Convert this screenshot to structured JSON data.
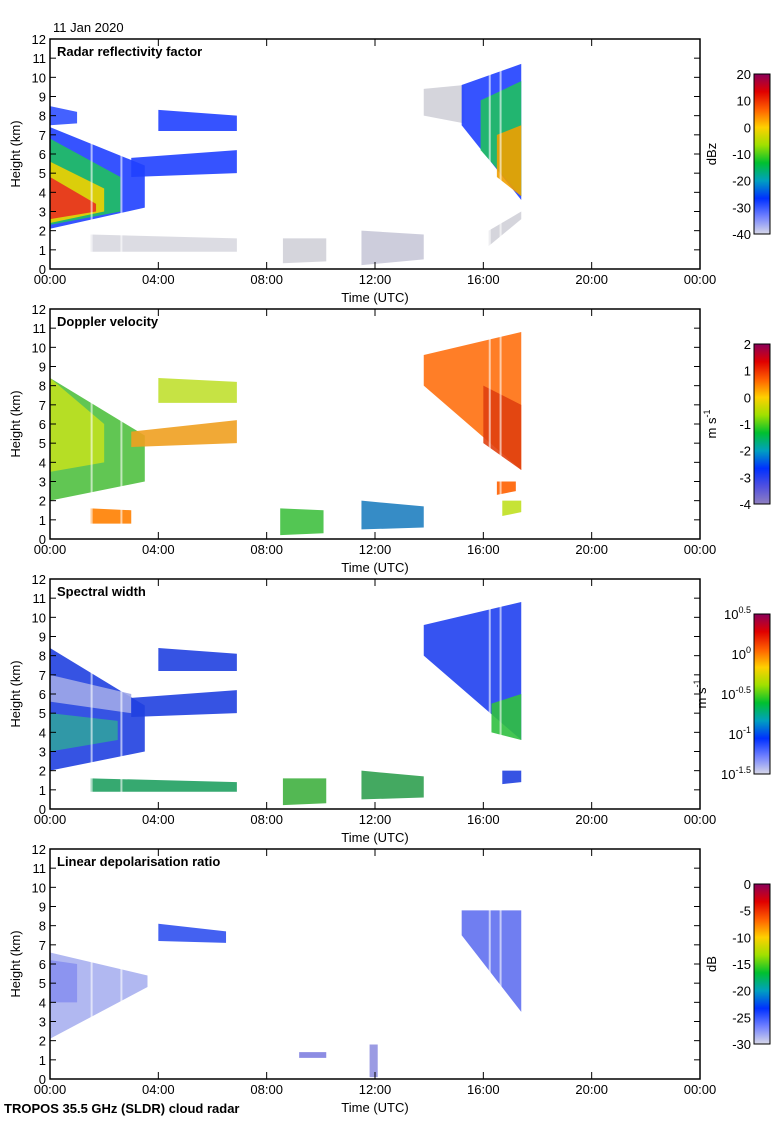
{
  "date": "11 Jan 2020",
  "footer": "TROPOS 35.5 GHz (SLDR) cloud radar",
  "chart_data": [
    {
      "type": "heatmap",
      "title": "Radar reflectivity factor",
      "xlabel": "Time (UTC)",
      "ylabel": "Height (km)",
      "xlim": [
        0,
        24
      ],
      "ylim": [
        0,
        12
      ],
      "xticks": [
        "00:00",
        "04:00",
        "08:00",
        "12:00",
        "16:00",
        "20:00",
        "00:00"
      ],
      "yticks": [
        "0",
        "1",
        "2",
        "3",
        "4",
        "5",
        "6",
        "7",
        "8",
        "9",
        "10",
        "11",
        "12"
      ],
      "colorbar": {
        "unit": "dBz",
        "unit_sup": "",
        "range": [
          -40,
          20
        ],
        "ticks": [
          {
            "b": "20",
            "e": ""
          },
          {
            "b": "10",
            "e": ""
          },
          {
            "b": "0",
            "e": ""
          },
          {
            "b": "-10",
            "e": ""
          },
          {
            "b": "-20",
            "e": ""
          },
          {
            "b": "-30",
            "e": ""
          },
          {
            "b": "-40",
            "e": ""
          }
        ],
        "colors": [
          "#8b005a",
          "#e00000",
          "#ff6000",
          "#ffd000",
          "#a0e000",
          "#00c030",
          "#00a0c0",
          "#0030ff",
          "#7080ff",
          "#d8d8e8"
        ]
      },
      "echoes": [
        {
          "t": [
            0,
            3.5
          ],
          "bottom": [
            2.1,
            3.2
          ],
          "top": [
            7.4,
            5.4
          ],
          "color": "#2040ff"
        },
        {
          "t": [
            0,
            2.6
          ],
          "bottom": [
            2.3,
            3.0
          ],
          "top": [
            6.8,
            4.8
          ],
          "color": "#20c060"
        },
        {
          "t": [
            0,
            2.0
          ],
          "bottom": [
            2.4,
            3.0
          ],
          "top": [
            5.6,
            4.2
          ],
          "color": "#f0d000"
        },
        {
          "t": [
            0,
            1.7
          ],
          "bottom": [
            2.6,
            3.0
          ],
          "top": [
            4.8,
            3.4
          ],
          "color": "#e83020"
        },
        {
          "t": [
            0,
            1.0
          ],
          "bottom": [
            7.5,
            7.6
          ],
          "top": [
            8.5,
            8.2
          ],
          "color": "#3050ff"
        },
        {
          "t": [
            4.0,
            6.9
          ],
          "bottom": [
            7.2,
            7.2
          ],
          "top": [
            8.3,
            8.0
          ],
          "color": "#2040ff"
        },
        {
          "t": [
            3.0,
            6.9
          ],
          "bottom": [
            4.8,
            5.0
          ],
          "top": [
            5.8,
            6.2
          ],
          "color": "#2040ff"
        },
        {
          "t": [
            13.8,
            15.3
          ],
          "bottom": [
            8.0,
            7.6
          ],
          "top": [
            9.4,
            9.6
          ],
          "color": "#d0d0d8"
        },
        {
          "t": [
            15.2,
            17.4
          ],
          "bottom": [
            7.5,
            3.6
          ],
          "top": [
            9.6,
            10.7
          ],
          "color": "#2040ff"
        },
        {
          "t": [
            15.9,
            17.4
          ],
          "bottom": [
            6.2,
            3.8
          ],
          "top": [
            8.8,
            9.8
          ],
          "color": "#20c060"
        },
        {
          "t": [
            16.5,
            17.4
          ],
          "bottom": [
            4.8,
            3.8
          ],
          "top": [
            7.0,
            7.5
          ],
          "color": "#f0a000"
        },
        {
          "t": [
            1.5,
            6.9
          ],
          "bottom": [
            0.9,
            0.9
          ],
          "top": [
            1.8,
            1.6
          ],
          "color": "#d8d8e0"
        },
        {
          "t": [
            8.6,
            10.2
          ],
          "bottom": [
            0.3,
            0.4
          ],
          "top": [
            1.6,
            1.6
          ],
          "color": "#d0d0d8"
        },
        {
          "t": [
            11.5,
            13.8
          ],
          "bottom": [
            0.2,
            0.5
          ],
          "top": [
            2.0,
            1.8
          ],
          "color": "#c8c8d8"
        },
        {
          "t": [
            16.2,
            17.4
          ],
          "bottom": [
            1.2,
            2.6
          ],
          "top": [
            2.0,
            3.0
          ],
          "color": "#d0d0d8"
        }
      ]
    },
    {
      "type": "heatmap",
      "title": "Doppler velocity",
      "xlabel": "Time (UTC)",
      "ylabel": "Height (km)",
      "xlim": [
        0,
        24
      ],
      "ylim": [
        0,
        12
      ],
      "xticks": [
        "00:00",
        "04:00",
        "08:00",
        "12:00",
        "16:00",
        "20:00",
        "00:00"
      ],
      "yticks": [
        "0",
        "1",
        "2",
        "3",
        "4",
        "5",
        "6",
        "7",
        "8",
        "9",
        "10",
        "11",
        "12"
      ],
      "colorbar": {
        "unit": "m s",
        "unit_sup": "-1",
        "range": [
          -4,
          2
        ],
        "ticks": [
          {
            "b": "2",
            "e": ""
          },
          {
            "b": "1",
            "e": ""
          },
          {
            "b": "0",
            "e": ""
          },
          {
            "b": "-1",
            "e": ""
          },
          {
            "b": "-2",
            "e": ""
          },
          {
            "b": "-3",
            "e": ""
          },
          {
            "b": "-4",
            "e": ""
          }
        ],
        "colors": [
          "#8b005a",
          "#e00000",
          "#ff6000",
          "#ffd000",
          "#a0e000",
          "#00c030",
          "#00a0c0",
          "#0030ff",
          "#5050e0",
          "#9080c0"
        ]
      },
      "echoes": [
        {
          "t": [
            0,
            3.5
          ],
          "bottom": [
            2.0,
            3.0
          ],
          "top": [
            8.4,
            5.4
          ],
          "color": "#50c040"
        },
        {
          "t": [
            0,
            2.0
          ],
          "bottom": [
            3.5,
            4.0
          ],
          "top": [
            8.4,
            6.0
          ],
          "color": "#c0e020"
        },
        {
          "t": [
            4.0,
            6.9
          ],
          "bottom": [
            7.1,
            7.1
          ],
          "top": [
            8.4,
            8.2
          ],
          "color": "#c0e030"
        },
        {
          "t": [
            3.0,
            6.9
          ],
          "bottom": [
            4.8,
            5.0
          ],
          "top": [
            5.6,
            6.2
          ],
          "color": "#f0a020"
        },
        {
          "t": [
            13.8,
            17.4
          ],
          "bottom": [
            8.0,
            3.6
          ],
          "top": [
            9.6,
            10.8
          ],
          "color": "#ff7010"
        },
        {
          "t": [
            16.0,
            17.4
          ],
          "bottom": [
            5.0,
            3.6
          ],
          "top": [
            8.0,
            7.0
          ],
          "color": "#e04010"
        },
        {
          "t": [
            1.5,
            3.0
          ],
          "bottom": [
            0.8,
            0.8
          ],
          "top": [
            1.6,
            1.5
          ],
          "color": "#ff8000"
        },
        {
          "t": [
            8.5,
            10.1
          ],
          "bottom": [
            0.2,
            0.3
          ],
          "top": [
            1.6,
            1.5
          ],
          "color": "#40c040"
        },
        {
          "t": [
            11.5,
            13.8
          ],
          "bottom": [
            0.5,
            0.6
          ],
          "top": [
            2.0,
            1.7
          ],
          "color": "#2080c0"
        },
        {
          "t": [
            16.7,
            17.4
          ],
          "bottom": [
            1.2,
            1.4
          ],
          "top": [
            2.0,
            2.0
          ],
          "color": "#c0e020"
        },
        {
          "t": [
            16.5,
            17.2
          ],
          "bottom": [
            2.3,
            2.5
          ],
          "top": [
            3.0,
            3.0
          ],
          "color": "#ff6000"
        }
      ]
    },
    {
      "type": "heatmap",
      "title": "Spectral width",
      "xlabel": "Time (UTC)",
      "ylabel": "Height (km)",
      "xlim": [
        0,
        24
      ],
      "ylim": [
        0,
        12
      ],
      "xticks": [
        "00:00",
        "04:00",
        "08:00",
        "12:00",
        "16:00",
        "20:00",
        "00:00"
      ],
      "yticks": [
        "0",
        "1",
        "2",
        "3",
        "4",
        "5",
        "6",
        "7",
        "8",
        "9",
        "10",
        "11",
        "12"
      ],
      "colorbar": {
        "unit": "m s",
        "unit_sup": "-1",
        "range": [
          -1.5,
          0.5
        ],
        "ticks": [
          {
            "b": "10",
            "e": "0.5"
          },
          {
            "b": "10",
            "e": "0"
          },
          {
            "b": "10",
            "e": "-0.5"
          },
          {
            "b": "10",
            "e": "-1"
          },
          {
            "b": "10",
            "e": "-1.5"
          }
        ],
        "colors": [
          "#8b005a",
          "#e00000",
          "#ff6000",
          "#ffd000",
          "#a0e000",
          "#00c030",
          "#00a0c0",
          "#0030ff",
          "#7080ff",
          "#d8d8e8"
        ]
      },
      "echoes": [
        {
          "t": [
            0,
            3.5
          ],
          "bottom": [
            2.0,
            3.0
          ],
          "top": [
            8.4,
            5.4
          ],
          "color": "#2040e0"
        },
        {
          "t": [
            0,
            2.5
          ],
          "bottom": [
            3.0,
            3.6
          ],
          "top": [
            5.0,
            4.6
          ],
          "color": "#30a0a0"
        },
        {
          "t": [
            0,
            3.0
          ],
          "bottom": [
            5.6,
            5.0
          ],
          "top": [
            7.0,
            6.0
          ],
          "color": "#a0a8e8"
        },
        {
          "t": [
            4.0,
            6.9
          ],
          "bottom": [
            7.2,
            7.2
          ],
          "top": [
            8.4,
            8.1
          ],
          "color": "#2040e0"
        },
        {
          "t": [
            3.0,
            6.9
          ],
          "bottom": [
            4.8,
            5.0
          ],
          "top": [
            5.8,
            6.2
          ],
          "color": "#2040e0"
        },
        {
          "t": [
            13.8,
            17.4
          ],
          "bottom": [
            8.0,
            3.6
          ],
          "top": [
            9.6,
            10.8
          ],
          "color": "#2040f0"
        },
        {
          "t": [
            16.3,
            17.4
          ],
          "bottom": [
            4.0,
            3.6
          ],
          "top": [
            5.5,
            6.0
          ],
          "color": "#30c040"
        },
        {
          "t": [
            1.5,
            6.9
          ],
          "bottom": [
            0.9,
            0.9
          ],
          "top": [
            1.6,
            1.4
          ],
          "color": "#20a060"
        },
        {
          "t": [
            8.6,
            10.2
          ],
          "bottom": [
            0.2,
            0.3
          ],
          "top": [
            1.6,
            1.6
          ],
          "color": "#40b040"
        },
        {
          "t": [
            11.5,
            13.8
          ],
          "bottom": [
            0.5,
            0.6
          ],
          "top": [
            2.0,
            1.7
          ],
          "color": "#30a050"
        },
        {
          "t": [
            16.7,
            17.4
          ],
          "bottom": [
            1.3,
            1.4
          ],
          "top": [
            2.0,
            2.0
          ],
          "color": "#2040e0"
        }
      ]
    },
    {
      "type": "heatmap",
      "title": "Linear depolarisation ratio",
      "xlabel": "Time (UTC)",
      "ylabel": "Height (km)",
      "xlim": [
        0,
        24
      ],
      "ylim": [
        0,
        12
      ],
      "xticks": [
        "00:00",
        "04:00",
        "08:00",
        "12:00",
        "16:00",
        "20:00",
        "00:00"
      ],
      "yticks": [
        "0",
        "1",
        "2",
        "3",
        "4",
        "5",
        "6",
        "7",
        "8",
        "9",
        "10",
        "11",
        "12"
      ],
      "colorbar": {
        "unit": "dB",
        "unit_sup": "",
        "range": [
          -30,
          0
        ],
        "ticks": [
          {
            "b": "0",
            "e": ""
          },
          {
            "b": "-5",
            "e": ""
          },
          {
            "b": "-10",
            "e": ""
          },
          {
            "b": "-15",
            "e": ""
          },
          {
            "b": "-20",
            "e": ""
          },
          {
            "b": "-25",
            "e": ""
          },
          {
            "b": "-30",
            "e": ""
          }
        ],
        "colors": [
          "#8b005a",
          "#e00000",
          "#ff6000",
          "#ffd000",
          "#a0e000",
          "#00c030",
          "#00a0c0",
          "#0030ff",
          "#7080ff",
          "#d8d8e8"
        ]
      },
      "echoes": [
        {
          "t": [
            0,
            3.6
          ],
          "bottom": [
            2.1,
            4.8
          ],
          "top": [
            6.6,
            5.4
          ],
          "color": "#a8b0f0"
        },
        {
          "t": [
            0,
            1.0
          ],
          "bottom": [
            4.0,
            4.0
          ],
          "top": [
            6.2,
            6.0
          ],
          "color": "#8890f0"
        },
        {
          "t": [
            4.0,
            6.5
          ],
          "bottom": [
            7.2,
            7.1
          ],
          "top": [
            8.1,
            7.7
          ],
          "color": "#3050f0"
        },
        {
          "t": [
            15.2,
            17.4
          ],
          "bottom": [
            7.5,
            3.5
          ],
          "top": [
            8.8,
            8.8
          ],
          "color": "#6070f0"
        },
        {
          "t": [
            11.8,
            12.1
          ],
          "bottom": [
            0.1,
            0.1
          ],
          "top": [
            1.8,
            1.8
          ],
          "color": "#9090e0"
        },
        {
          "t": [
            9.2,
            10.2
          ],
          "bottom": [
            1.1,
            1.1
          ],
          "top": [
            1.4,
            1.4
          ],
          "color": "#8080e0"
        }
      ]
    }
  ]
}
